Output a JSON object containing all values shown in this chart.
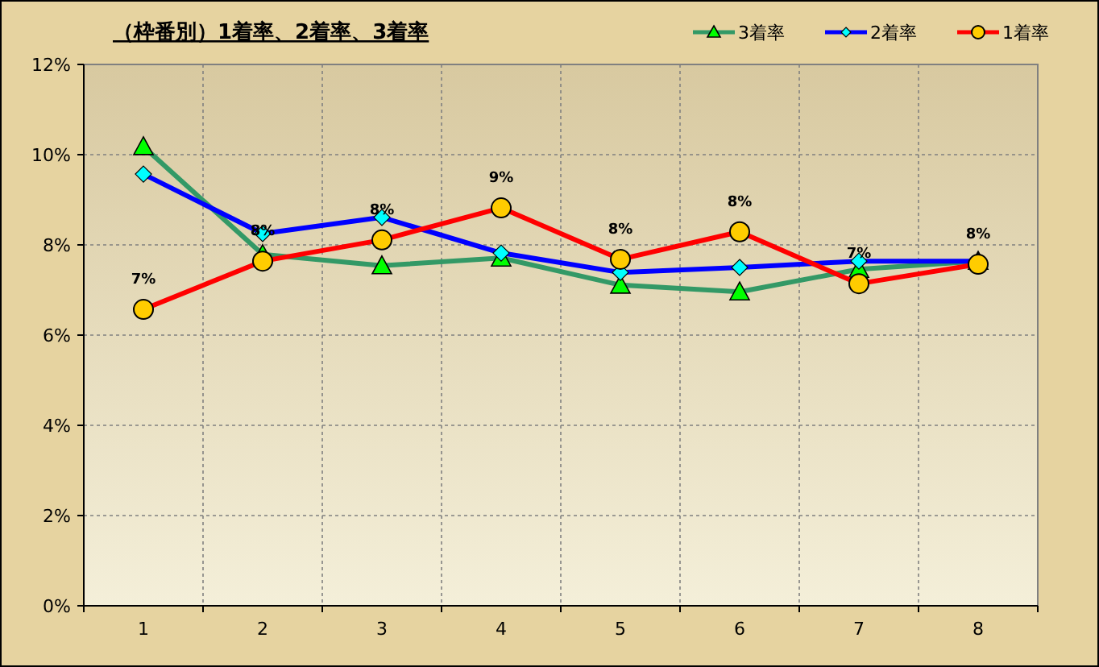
{
  "chart_data": {
    "type": "line",
    "title": "（枠番別）1着率、2着率、3着率",
    "categories": [
      "1",
      "2",
      "3",
      "4",
      "5",
      "6",
      "7",
      "8"
    ],
    "ylim": [
      0,
      12
    ],
    "yticks": [
      {
        "value": 0,
        "label": "0%"
      },
      {
        "value": 2,
        "label": "2%"
      },
      {
        "value": 4,
        "label": "4%"
      },
      {
        "value": 6,
        "label": "6%"
      },
      {
        "value": 8,
        "label": "8%"
      },
      {
        "value": 10,
        "label": "10%"
      },
      {
        "value": 12,
        "label": "12%"
      }
    ],
    "grid": true,
    "legend": "top right",
    "line_style": "solid",
    "series": [
      {
        "name": "3着率",
        "color": "#339966",
        "marker": "triangle",
        "colors": [
          "#00ff00",
          "#00ff00",
          "#00ff00",
          "#00ff00",
          "#00ff00",
          "#00ff00",
          "#00ff00",
          "#00ff00"
        ],
        "values": [
          10.18,
          7.79,
          7.54,
          7.71,
          7.11,
          6.96,
          7.46,
          7.64
        ]
      },
      {
        "name": "2着率",
        "color": "#0000ff",
        "marker": "diamond",
        "colors": [
          "#00ffff",
          "#00ffff",
          "#00ffff",
          "#00ffff",
          "#00ffff",
          "#00ffff",
          "#00ffff",
          "#00ffff"
        ],
        "values": [
          9.57,
          8.25,
          8.61,
          7.82,
          7.39,
          7.5,
          7.64,
          7.64
        ]
      },
      {
        "name": "1着率",
        "color": "#ff0000",
        "marker": "circle",
        "colors": [
          "#ffcc00",
          "#ffcc00",
          "#ffcc00",
          "#ffcc00",
          "#ffcc00",
          "#ffcc00",
          "#ffcc00",
          "#ffcc00"
        ],
        "values": [
          6.57,
          7.64,
          8.11,
          8.82,
          7.68,
          8.29,
          7.14,
          7.57
        ],
        "value_labels": [
          "7%",
          "8%",
          "8%",
          "9%",
          "8%",
          "8%",
          "7%",
          "8%"
        ]
      }
    ]
  }
}
